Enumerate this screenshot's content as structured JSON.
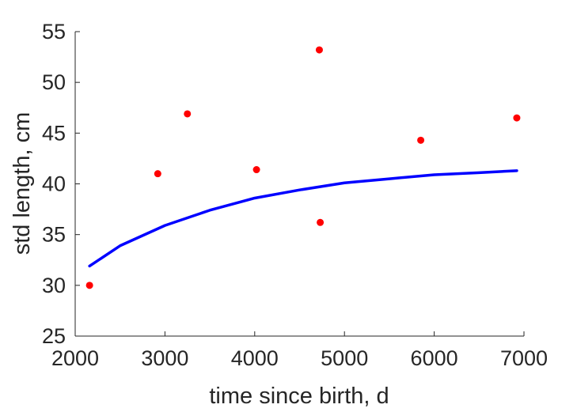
{
  "chart_data": {
    "type": "scatter",
    "title": "",
    "xlabel": "time since birth, d",
    "ylabel": "std length, cm",
    "xlim": [
      2000,
      7000
    ],
    "ylim": [
      25,
      55
    ],
    "xticks": [
      "2000",
      "3000",
      "4000",
      "5000",
      "6000",
      "7000"
    ],
    "yticks": [
      "25",
      "30",
      "35",
      "40",
      "45",
      "50",
      "55"
    ],
    "grid": false,
    "legend": "none",
    "series": [
      {
        "kind": "points",
        "color": "#ff0000",
        "x": [
          2160,
          2920,
          3250,
          4020,
          4720,
          4730,
          5850,
          6920
        ],
        "y": [
          30.0,
          41.0,
          46.9,
          41.4,
          53.2,
          36.2,
          44.3,
          46.5
        ]
      },
      {
        "kind": "line",
        "color": "#0000ff",
        "x": [
          2160,
          2500,
          3000,
          3500,
          4000,
          4500,
          5000,
          5500,
          6000,
          6500,
          6920
        ],
        "y": [
          31.9,
          33.9,
          35.9,
          37.4,
          38.6,
          39.4,
          40.1,
          40.5,
          40.9,
          41.1,
          41.3
        ]
      }
    ]
  }
}
